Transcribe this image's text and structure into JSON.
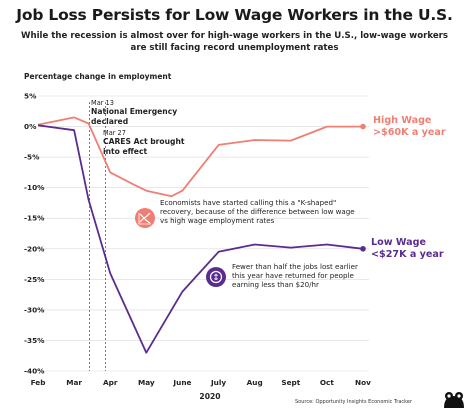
{
  "title": "Job Loss Persists for Low Wage Workers in the U.S.",
  "subtitle": "While the recession is almost over for high-wage workers in the U.S., low-wage workers are still facing record unemployment rates",
  "source": "Source: Opportunity Insights Economic Tracker",
  "colors": {
    "high_wage": "#ef7f72",
    "low_wage": "#5b2c8f",
    "grid": "#d9d9d9"
  },
  "chart_data": {
    "type": "line",
    "ylabel": "Percentage change in employment",
    "xlabel": "2020",
    "categories": [
      "Feb",
      "Mar",
      "Apr",
      "May",
      "June",
      "July",
      "Aug",
      "Sept",
      "Oct",
      "Nov"
    ],
    "ylim": [
      -40,
      5
    ],
    "yticks": [
      5,
      0,
      -5,
      -10,
      -15,
      -20,
      -25,
      -30,
      -35,
      -40
    ],
    "ytick_labels": [
      "5%",
      "0%",
      "-5%",
      "-10%",
      "-15%",
      "-20%",
      "-25%",
      "-30%",
      "-35%",
      "-40%"
    ],
    "grid": true,
    "series": [
      {
        "name": "High Wage >$60K a year",
        "label_lines": [
          "High Wage",
          ">$60K a year"
        ],
        "color": "#ef7f72",
        "x": [
          0,
          1,
          1.4,
          2,
          2.65,
          3,
          3.7,
          4,
          5,
          6,
          7,
          8,
          9
        ],
        "values": [
          0.3,
          1.5,
          0.5,
          -7.5,
          -9.5,
          -10.5,
          -11.4,
          -10.5,
          -3.0,
          -2.2,
          -2.3,
          0.0,
          0.0
        ]
      },
      {
        "name": "Low Wage <$27K a year",
        "label_lines": [
          "Low Wage",
          "<$27K a year"
        ],
        "color": "#5b2c8f",
        "x": [
          0,
          1,
          1.4,
          2,
          3,
          4,
          5,
          6,
          7,
          8,
          9
        ],
        "values": [
          0.2,
          -0.6,
          -12.0,
          -24.0,
          -37.0,
          -27.0,
          -20.5,
          -19.3,
          -19.8,
          -19.3,
          -20.0
        ]
      }
    ],
    "events": [
      {
        "date": "Mar 13",
        "label": "National Emergency declared",
        "x": 1.43
      },
      {
        "date": "Mar 27",
        "label": "CARES Act brought into effect",
        "x": 1.87
      }
    ],
    "annotations": [
      {
        "text": "Economists have started calling this a \"K-shaped\" recovery, because of the difference between low wage vs high wage employment rates",
        "icon": "k-shape-chart-icon"
      },
      {
        "text": "Fewer than half the jobs lost earlier this year have returned for people earning less than $20/hr",
        "icon": "coin-icon"
      }
    ]
  }
}
